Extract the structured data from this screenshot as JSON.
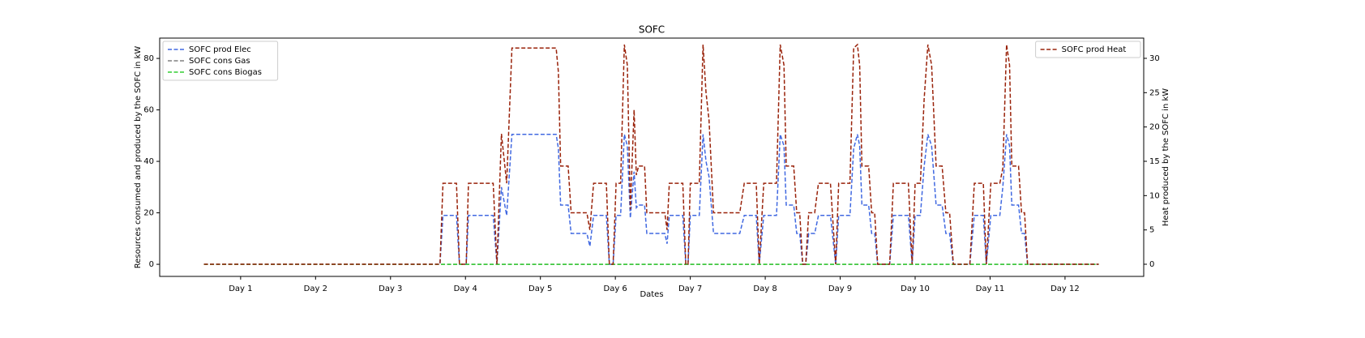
{
  "chart_data": {
    "type": "line",
    "title": "SOFC",
    "x_label": "Dates",
    "y_label": "Resources consumed and produced by the SOFC in kW",
    "y2_label": "Heat produced by the SOFC in kW",
    "x": [
      0.51,
      3.66,
      3.7,
      3.88,
      3.92,
      4.01,
      4.04,
      4.37,
      4.42,
      4.48,
      4.55,
      4.62,
      5.21,
      5.24,
      5.27,
      5.37,
      5.41,
      5.62,
      5.66,
      5.71,
      5.88,
      5.92,
      5.97,
      6.01,
      6.07,
      6.12,
      6.16,
      6.2,
      6.25,
      6.28,
      6.31,
      6.39,
      6.42,
      6.66,
      6.69,
      6.72,
      6.9,
      6.94,
      6.97,
      7.0,
      7.12,
      7.17,
      7.21,
      7.25,
      7.31,
      7.66,
      7.72,
      7.88,
      7.92,
      7.98,
      8.15,
      8.2,
      8.25,
      8.28,
      8.38,
      8.42,
      8.46,
      8.5,
      8.54,
      8.58,
      8.66,
      8.71,
      8.87,
      8.94,
      8.98,
      9.13,
      9.18,
      9.23,
      9.26,
      9.29,
      9.38,
      9.42,
      9.46,
      9.5,
      9.66,
      9.71,
      9.91,
      9.96,
      10.0,
      10.07,
      10.12,
      10.17,
      10.22,
      10.28,
      10.36,
      10.41,
      10.46,
      10.51,
      10.73,
      10.79,
      10.91,
      10.95,
      11.01,
      11.13,
      11.17,
      11.22,
      11.26,
      11.29,
      11.38,
      11.42,
      11.46,
      11.5,
      12.45
    ],
    "series": [
      {
        "name": "SOFC prod Elec",
        "color": "#4169e1",
        "axis": "y",
        "values": [
          0,
          0,
          19,
          19,
          0,
          0,
          19,
          19,
          0,
          30,
          19,
          50.5,
          50.5,
          45,
          23,
          23,
          12,
          12,
          7,
          19,
          19,
          0,
          0,
          19,
          19,
          50.5,
          46,
          18,
          36,
          22,
          23,
          23,
          12,
          12,
          8,
          19,
          19,
          0,
          0,
          19,
          19,
          50.5,
          40,
          34,
          12,
          12,
          19,
          19,
          0,
          19,
          19,
          50.5,
          46,
          23,
          23,
          12,
          12,
          0,
          0,
          12,
          12,
          19,
          19,
          0,
          19,
          19,
          45,
          50.5,
          46,
          23,
          23,
          12,
          12,
          0,
          0,
          19,
          19,
          0,
          19,
          19,
          38,
          50.5,
          46,
          23,
          23,
          12,
          12,
          0,
          0,
          19,
          19,
          0,
          19,
          19,
          30,
          50.5,
          46,
          23,
          23,
          12,
          12,
          0,
          0
        ]
      },
      {
        "name": "SOFC cons Gas",
        "color": "#808080",
        "axis": "y",
        "values": [
          0,
          0,
          0,
          0,
          0,
          0,
          0,
          0,
          0,
          0,
          0,
          0,
          0,
          0,
          0,
          0,
          0,
          0,
          0,
          0,
          0,
          0,
          0,
          0,
          0,
          0,
          0,
          0,
          0,
          0,
          0,
          0,
          0,
          0,
          0,
          0,
          0,
          0,
          0,
          0,
          0,
          0,
          0,
          0,
          0,
          0,
          0,
          0,
          0,
          0,
          0,
          0,
          0,
          0,
          0,
          0,
          0,
          0,
          0,
          0,
          0,
          0,
          0,
          0,
          0,
          0,
          0,
          0,
          0,
          0,
          0,
          0,
          0,
          0,
          0,
          0,
          0,
          0,
          0,
          0,
          0,
          0,
          0,
          0,
          0,
          0,
          0,
          0,
          0,
          0,
          0,
          0,
          0,
          0,
          0,
          0,
          0,
          0,
          0,
          0,
          0,
          0,
          0
        ]
      },
      {
        "name": "SOFC cons Biogas",
        "color": "#32cd32",
        "axis": "y",
        "values": [
          0,
          0,
          0,
          0,
          0,
          0,
          0,
          0,
          0,
          0,
          0,
          0,
          0,
          0,
          0,
          0,
          0,
          0,
          0,
          0,
          0,
          0,
          0,
          0,
          0,
          0,
          0,
          0,
          0,
          0,
          0,
          0,
          0,
          0,
          0,
          0,
          0,
          0,
          0,
          0,
          0,
          0,
          0,
          0,
          0,
          0,
          0,
          0,
          0,
          0,
          0,
          0,
          0,
          0,
          0,
          0,
          0,
          0,
          0,
          0,
          0,
          0,
          0,
          0,
          0,
          0,
          0,
          0,
          0,
          0,
          0,
          0,
          0,
          0,
          0,
          0,
          0,
          0,
          0,
          0,
          0,
          0,
          0,
          0,
          0,
          0,
          0,
          0,
          0,
          0,
          0,
          0,
          0,
          0,
          0,
          0,
          0,
          0,
          0,
          0,
          0,
          0,
          0
        ]
      },
      {
        "name": "SOFC prod Heat",
        "color": "#99220a",
        "axis": "y2",
        "values": [
          0,
          0,
          11.8,
          11.8,
          0,
          0,
          11.8,
          11.8,
          0,
          19,
          11.8,
          31.5,
          31.5,
          28,
          14.3,
          14.3,
          7.5,
          7.5,
          5,
          11.8,
          11.8,
          0,
          0,
          11.8,
          11.8,
          32,
          29,
          8,
          22.5,
          13,
          14.3,
          14.3,
          7.5,
          7.5,
          5,
          11.8,
          11.8,
          0,
          0,
          11.8,
          11.8,
          32,
          25,
          21,
          7.5,
          7.5,
          11.8,
          11.8,
          0,
          11.8,
          11.8,
          32,
          29,
          14.3,
          14.3,
          7.5,
          7.5,
          0,
          0,
          7.5,
          7.5,
          11.8,
          11.8,
          0,
          11.8,
          11.8,
          31.5,
          32,
          29,
          14.3,
          14.3,
          7.5,
          7.5,
          0,
          0,
          11.8,
          11.8,
          0,
          11.8,
          11.8,
          24,
          32,
          29,
          14.3,
          14.3,
          7.5,
          7.5,
          0,
          0,
          11.8,
          11.8,
          0,
          11.8,
          11.8,
          14,
          32,
          29,
          14.3,
          14.3,
          7.5,
          7.5,
          0,
          0
        ]
      }
    ],
    "xlim": [
      -0.08,
      13.05
    ],
    "xticks": [
      {
        "value": 1,
        "label": "Day 1"
      },
      {
        "value": 2,
        "label": "Day 2"
      },
      {
        "value": 3,
        "label": "Day 3"
      },
      {
        "value": 4,
        "label": "Day 4"
      },
      {
        "value": 5,
        "label": "Day 5"
      },
      {
        "value": 6,
        "label": "Day 6"
      },
      {
        "value": 7,
        "label": "Day 7"
      },
      {
        "value": 8,
        "label": "Day 8"
      },
      {
        "value": 9,
        "label": "Day 9"
      },
      {
        "value": 10,
        "label": "Day 10"
      },
      {
        "value": 11,
        "label": "Day 11"
      },
      {
        "value": 12,
        "label": "Day 12"
      }
    ],
    "ylim": [
      -4.7,
      87.9
    ],
    "yticks": [
      0,
      20,
      40,
      60,
      80
    ],
    "y2lim": [
      -1.77,
      32.95
    ],
    "y2ticks": [
      0,
      5,
      10,
      15,
      20,
      25,
      30
    ],
    "legend": "upper left",
    "legend2": "upper right",
    "grid": false
  }
}
